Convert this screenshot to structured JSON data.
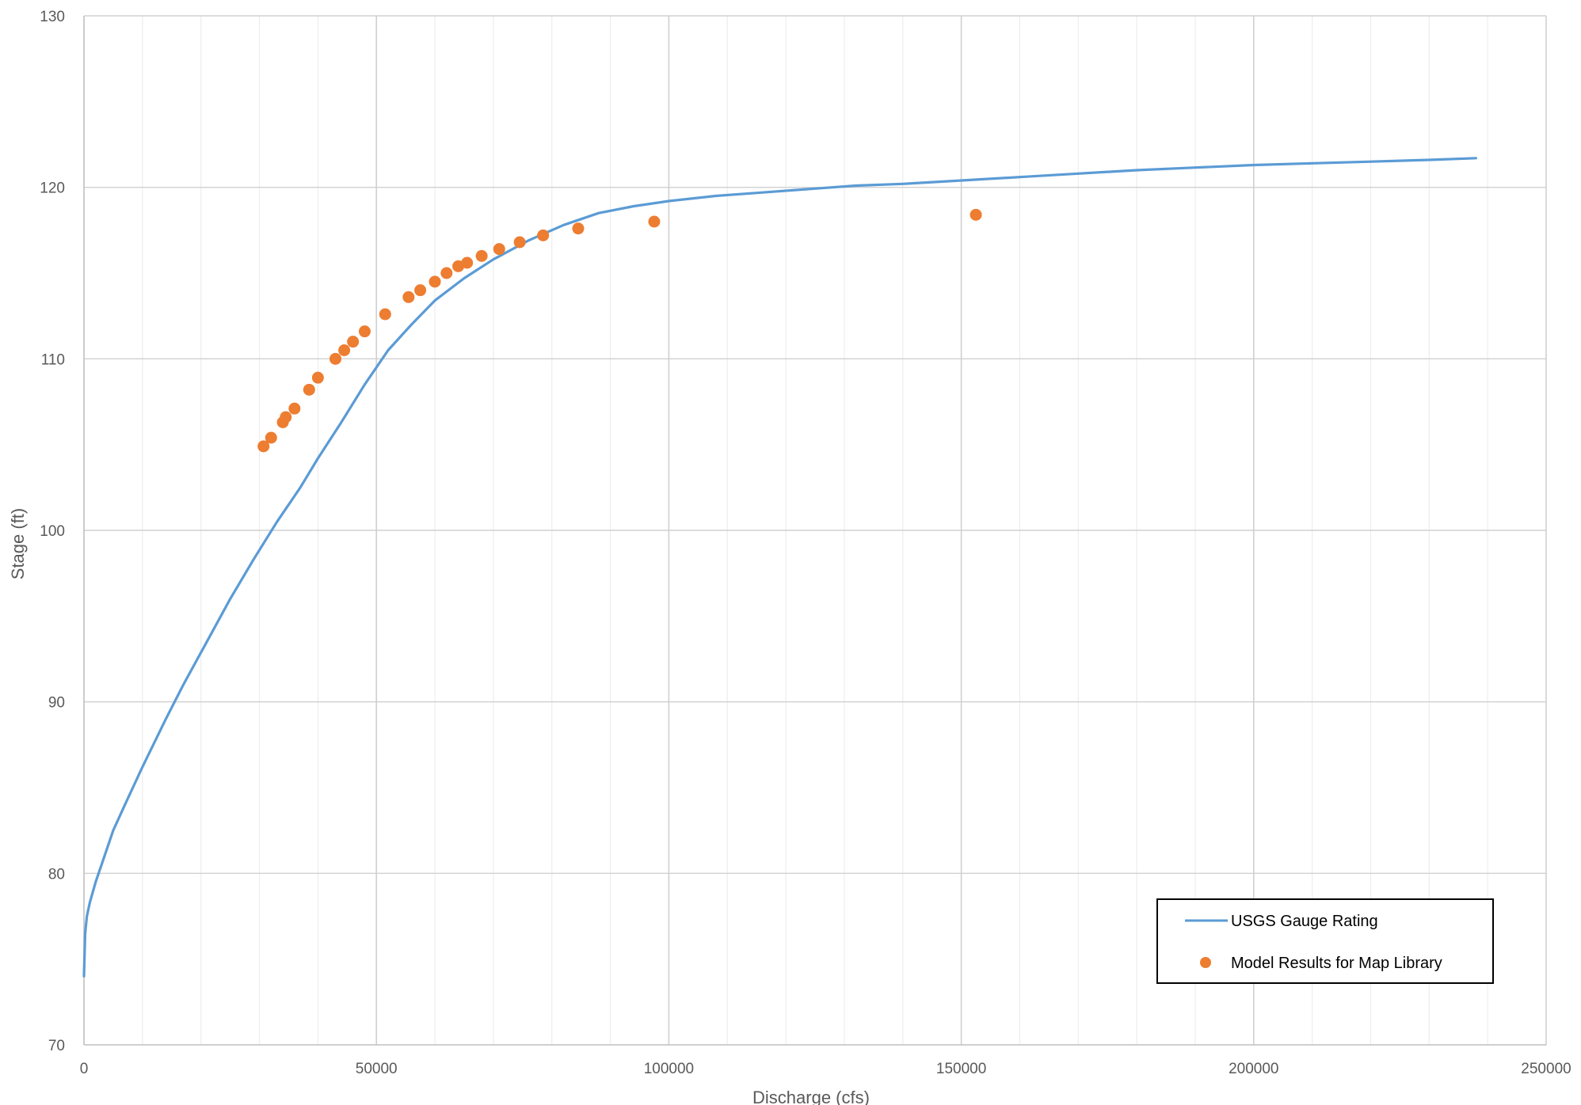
{
  "chart_data": {
    "type": "scatter",
    "title": "",
    "xlabel": "Discharge (cfs)",
    "ylabel": "Stage (ft)",
    "xlim": [
      0,
      250000
    ],
    "ylim": [
      70,
      130
    ],
    "x_ticks": [
      0,
      50000,
      100000,
      150000,
      200000,
      250000
    ],
    "y_ticks": [
      70,
      80,
      90,
      100,
      110,
      120,
      130
    ],
    "x_minor_step": 10000,
    "grid": true,
    "legend_position": "bottom-right",
    "series": [
      {
        "name": "USGS Gauge Rating",
        "kind": "line",
        "color": "#5B9BD5",
        "points": [
          [
            0,
            74
          ],
          [
            200,
            76.5
          ],
          [
            500,
            77.5
          ],
          [
            1000,
            78.3
          ],
          [
            2000,
            79.5
          ],
          [
            3000,
            80.5
          ],
          [
            5000,
            82.5
          ],
          [
            7000,
            84.0
          ],
          [
            10000,
            86.2
          ],
          [
            14000,
            89.0
          ],
          [
            17000,
            91.0
          ],
          [
            21000,
            93.5
          ],
          [
            25000,
            96.0
          ],
          [
            29000,
            98.3
          ],
          [
            33000,
            100.5
          ],
          [
            37000,
            102.5
          ],
          [
            40000,
            104.2
          ],
          [
            44000,
            106.3
          ],
          [
            48000,
            108.5
          ],
          [
            52000,
            110.5
          ],
          [
            56000,
            112.0
          ],
          [
            60000,
            113.4
          ],
          [
            65000,
            114.7
          ],
          [
            70000,
            115.8
          ],
          [
            76000,
            116.9
          ],
          [
            82000,
            117.8
          ],
          [
            88000,
            118.5
          ],
          [
            94000,
            118.9
          ],
          [
            100000,
            119.2
          ],
          [
            108000,
            119.5
          ],
          [
            116000,
            119.7
          ],
          [
            124000,
            119.9
          ],
          [
            132000,
            120.1
          ],
          [
            140000,
            120.2
          ],
          [
            150000,
            120.4
          ],
          [
            160000,
            120.6
          ],
          [
            170000,
            120.8
          ],
          [
            180000,
            121.0
          ],
          [
            190000,
            121.15
          ],
          [
            200000,
            121.3
          ],
          [
            210000,
            121.4
          ],
          [
            220000,
            121.5
          ],
          [
            230000,
            121.6
          ],
          [
            238000,
            121.7
          ]
        ]
      },
      {
        "name": "Model Results for Map Library",
        "kind": "scatter",
        "color": "#ED7D31",
        "points": [
          [
            30700,
            104.9
          ],
          [
            32000,
            105.4
          ],
          [
            34000,
            106.3
          ],
          [
            34500,
            106.6
          ],
          [
            36000,
            107.1
          ],
          [
            38500,
            108.2
          ],
          [
            40000,
            108.9
          ],
          [
            43000,
            110.0
          ],
          [
            44500,
            110.5
          ],
          [
            46000,
            111.0
          ],
          [
            48000,
            111.6
          ],
          [
            51500,
            112.6
          ],
          [
            55500,
            113.6
          ],
          [
            57500,
            114.0
          ],
          [
            60000,
            114.5
          ],
          [
            62000,
            115.0
          ],
          [
            64000,
            115.4
          ],
          [
            65500,
            115.6
          ],
          [
            68000,
            116.0
          ],
          [
            71000,
            116.4
          ],
          [
            74500,
            116.8
          ],
          [
            78500,
            117.2
          ],
          [
            84500,
            117.6
          ],
          [
            97500,
            118.0
          ],
          [
            152500,
            118.4
          ]
        ]
      }
    ]
  }
}
